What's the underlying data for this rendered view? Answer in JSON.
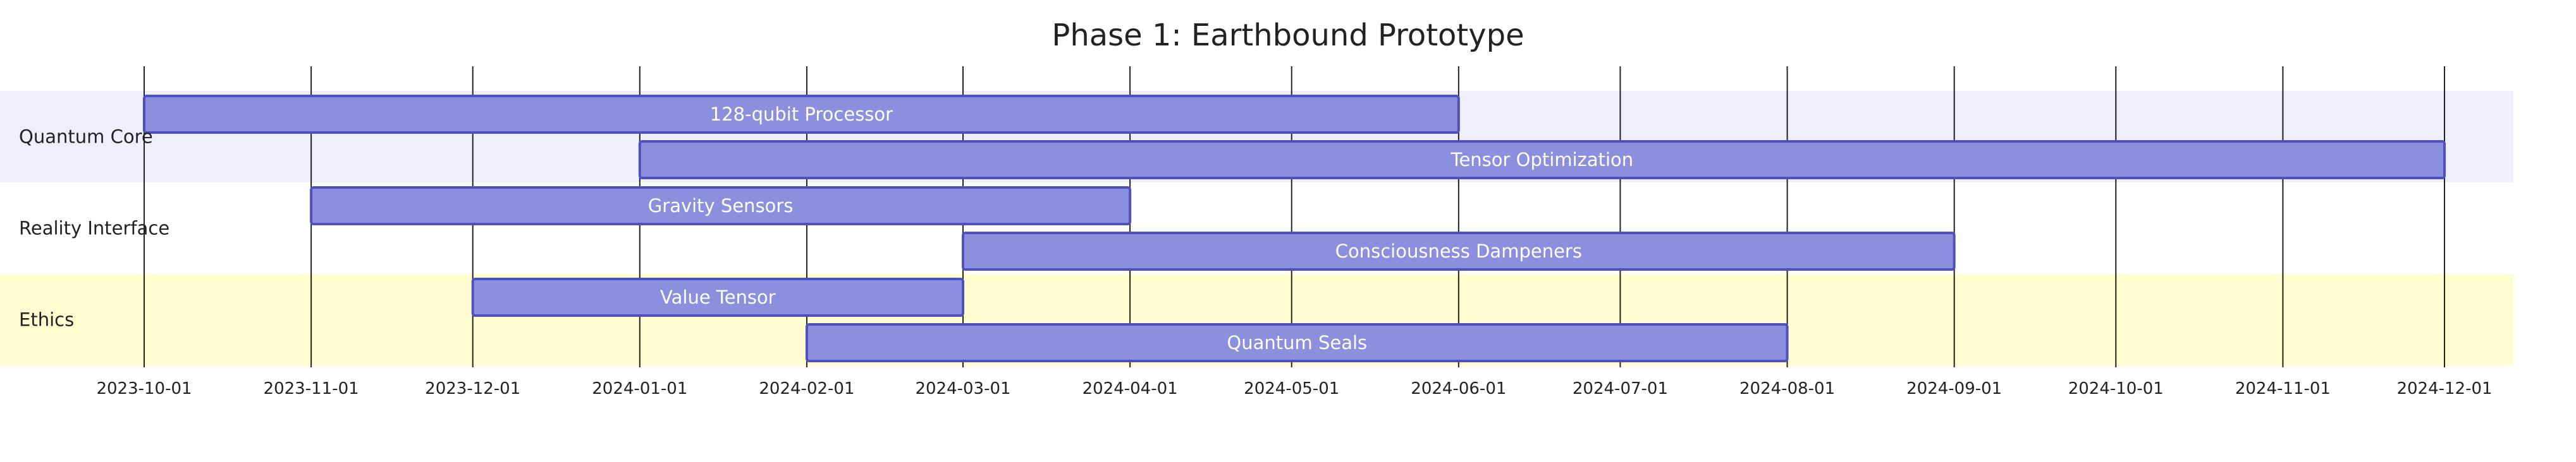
{
  "chart_data": {
    "type": "gantt",
    "title": "Phase 1: Earthbound Prototype",
    "x_range": [
      "2023-10-01",
      "2024-12-01"
    ],
    "ticks": [
      "2023-10-01",
      "2023-11-01",
      "2023-12-01",
      "2024-01-01",
      "2024-02-01",
      "2024-03-01",
      "2024-04-01",
      "2024-05-01",
      "2024-06-01",
      "2024-07-01",
      "2024-08-01",
      "2024-09-01",
      "2024-10-01",
      "2024-11-01",
      "2024-12-01"
    ],
    "grid": true,
    "sections": [
      {
        "name": "Quantum Core",
        "color": "#efeffc",
        "tasks": [
          {
            "name": "128-qubit Processor",
            "start": "2023-10-01",
            "end": "2024-06-01"
          },
          {
            "name": "Tensor Optimization",
            "start": "2024-01-01",
            "end": "2024-12-01"
          }
        ]
      },
      {
        "name": "Reality Interface",
        "color": "#ffffff",
        "tasks": [
          {
            "name": "Gravity Sensors",
            "start": "2023-11-01",
            "end": "2024-04-01"
          },
          {
            "name": "Consciousness Dampeners",
            "start": "2024-03-01",
            "end": "2024-09-01"
          }
        ]
      },
      {
        "name": "Ethics",
        "color": "#fefdd0",
        "tasks": [
          {
            "name": "Value Tensor",
            "start": "2023-12-01",
            "end": "2024-03-01"
          },
          {
            "name": "Quantum Seals",
            "start": "2024-02-01",
            "end": "2024-08-01"
          }
        ]
      }
    ],
    "colors": {
      "bar_fill": "#8a90dd",
      "bar_stroke": "#4f4fbf",
      "bar_text": "#ffffff"
    }
  }
}
